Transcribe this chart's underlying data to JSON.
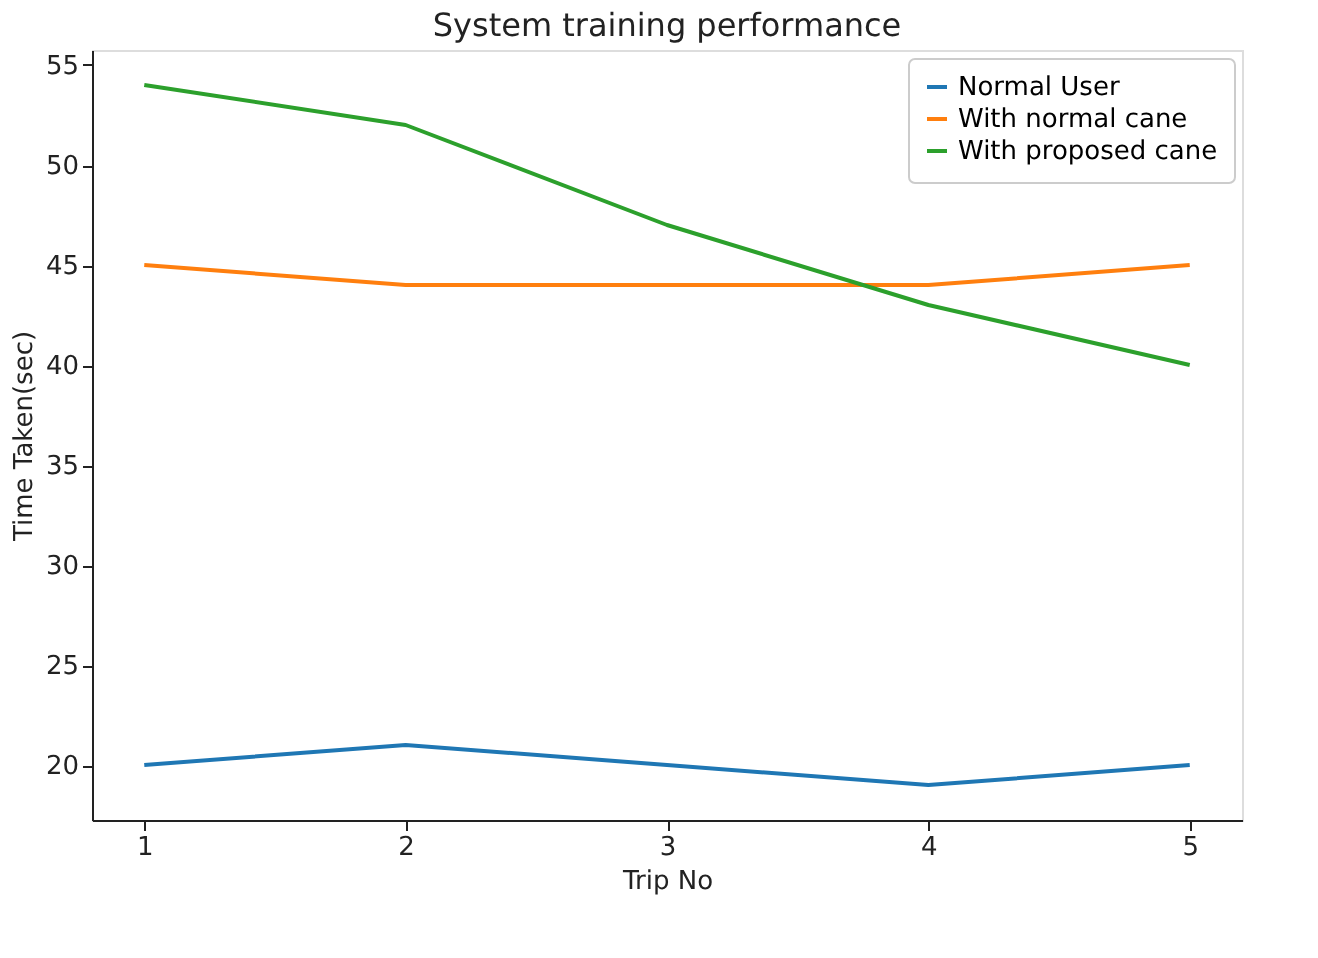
{
  "chart_data": {
    "type": "line",
    "title": "System training performance",
    "xlabel": "Trip No",
    "ylabel": "Time Taken(sec)",
    "x": [
      1,
      2,
      3,
      4,
      5
    ],
    "series": [
      {
        "name": "Normal User",
        "color": "#1f77b4",
        "values": [
          20,
          21,
          20,
          19,
          20
        ]
      },
      {
        "name": "With normal cane",
        "color": "#ff7f0e",
        "values": [
          45,
          44,
          44,
          44,
          45
        ]
      },
      {
        "name": "With proposed cane",
        "color": "#2ca02c",
        "values": [
          54,
          52,
          47,
          43,
          40
        ]
      }
    ],
    "xlim": [
      0.8,
      5.2
    ],
    "xticks": [
      1,
      2,
      3,
      4,
      5
    ],
    "ylim": [
      17.25,
      55.75
    ],
    "yticks": [
      20,
      25,
      30,
      35,
      40,
      45,
      50,
      55
    ],
    "grid": false,
    "legend": "top right",
    "marker": "none",
    "line_style": "solid"
  }
}
